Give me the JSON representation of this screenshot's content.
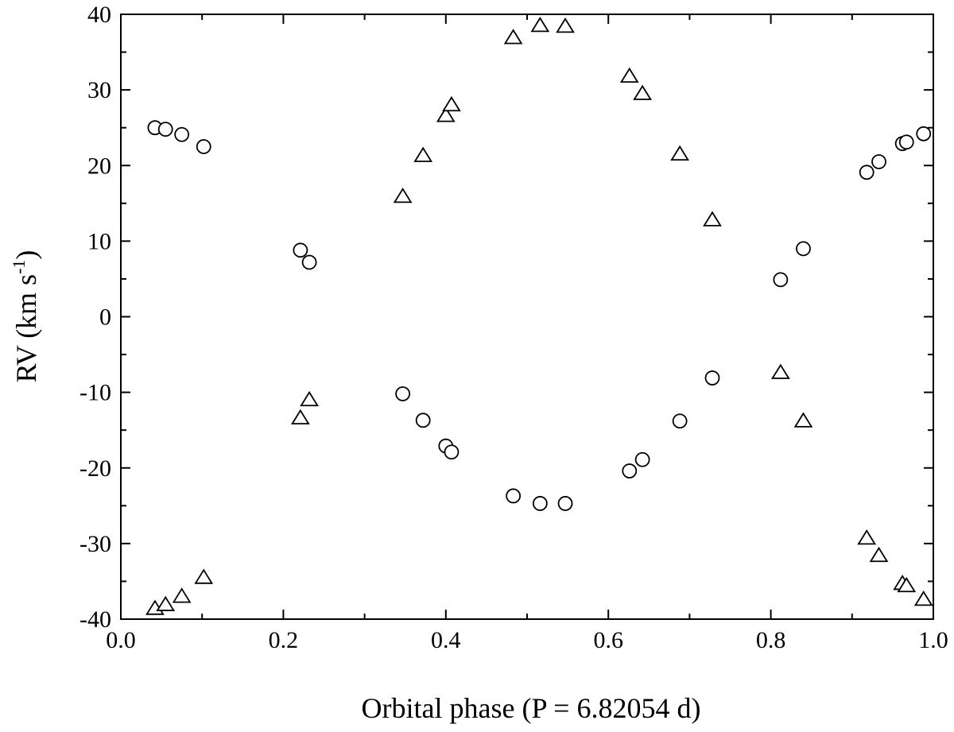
{
  "chart_data": {
    "type": "scatter",
    "xlabel": "Orbital phase (P = 6.82054 d)",
    "ylabel_main": "RV (km s",
    "ylabel_sup": "-1",
    "ylabel_close": ")",
    "xlim": [
      0.0,
      1.0
    ],
    "ylim": [
      -40,
      40
    ],
    "x_ticks": [
      "0.0",
      "0.2",
      "0.4",
      "0.6",
      "0.8",
      "1.0"
    ],
    "y_ticks": [
      "40",
      "30",
      "20",
      "10",
      "0",
      "-10",
      "-20",
      "-30",
      "-40"
    ],
    "grid": false,
    "series": [
      {
        "marker": "circle",
        "points": [
          [
            0.042,
            25.0
          ],
          [
            0.055,
            24.8
          ],
          [
            0.075,
            24.1
          ],
          [
            0.102,
            22.5
          ],
          [
            0.221,
            8.8
          ],
          [
            0.232,
            7.2
          ],
          [
            0.347,
            -10.2
          ],
          [
            0.372,
            -13.7
          ],
          [
            0.4,
            -17.1
          ],
          [
            0.407,
            -17.9
          ],
          [
            0.483,
            -23.7
          ],
          [
            0.516,
            -24.7
          ],
          [
            0.547,
            -24.7
          ],
          [
            0.626,
            -20.4
          ],
          [
            0.642,
            -18.9
          ],
          [
            0.688,
            -13.8
          ],
          [
            0.728,
            -8.1
          ],
          [
            0.812,
            4.9
          ],
          [
            0.84,
            9.0
          ],
          [
            0.918,
            19.1
          ],
          [
            0.933,
            20.5
          ],
          [
            0.962,
            22.9
          ],
          [
            0.967,
            23.1
          ],
          [
            0.988,
            24.2
          ]
        ]
      },
      {
        "marker": "triangle",
        "points": [
          [
            0.042,
            -38.6
          ],
          [
            0.055,
            -38.1
          ],
          [
            0.075,
            -37.0
          ],
          [
            0.102,
            -34.5
          ],
          [
            0.221,
            -13.4
          ],
          [
            0.232,
            -11.0
          ],
          [
            0.347,
            15.9
          ],
          [
            0.372,
            21.3
          ],
          [
            0.4,
            26.6
          ],
          [
            0.407,
            28.0
          ],
          [
            0.483,
            36.9
          ],
          [
            0.516,
            38.5
          ],
          [
            0.547,
            38.4
          ],
          [
            0.626,
            31.8
          ],
          [
            0.642,
            29.5
          ],
          [
            0.688,
            21.5
          ],
          [
            0.728,
            12.8
          ],
          [
            0.812,
            -7.4
          ],
          [
            0.84,
            -13.8
          ],
          [
            0.918,
            -29.3
          ],
          [
            0.933,
            -31.6
          ],
          [
            0.962,
            -35.3
          ],
          [
            0.967,
            -35.6
          ],
          [
            0.988,
            -37.4
          ]
        ]
      }
    ]
  }
}
